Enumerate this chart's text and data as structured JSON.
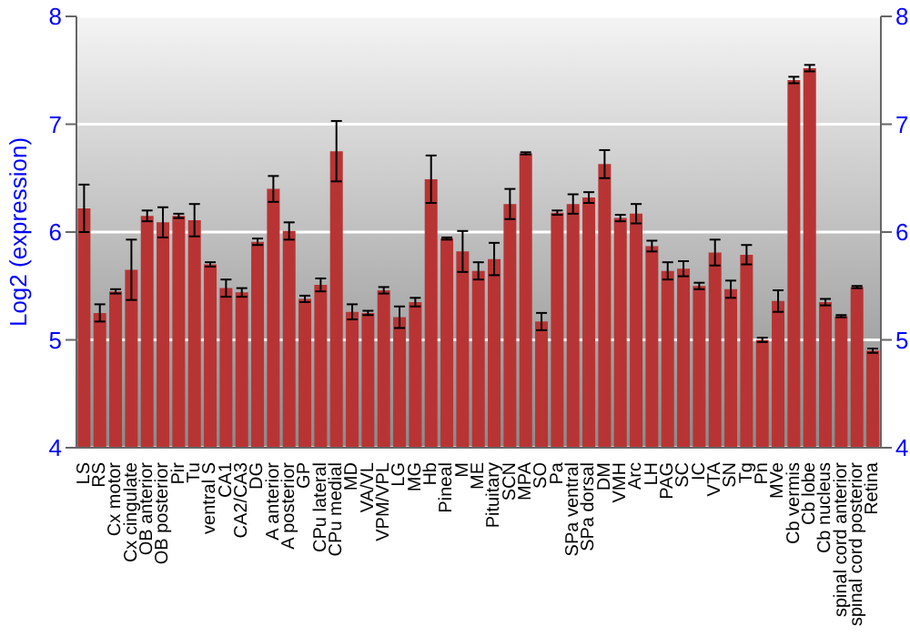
{
  "chart_data": {
    "type": "bar",
    "ylabel": "Log2 (expression)",
    "categories": [
      "LS",
      "RS",
      "Cx motor",
      "Cx cingulate",
      "OB anterior",
      "OB posterior",
      "Pir",
      "Tu",
      "ventral S",
      "CA1",
      "CA2/CA3",
      "DG",
      "A anterior",
      "A posterior",
      "GP",
      "CPu lateral",
      "CPu medial",
      "MD",
      "VA/VL",
      "VPM/VPL",
      "LG",
      "MG",
      "Hb",
      "Pineal",
      "M",
      "ME",
      "Pituitary",
      "SCN",
      "MPA",
      "SO",
      "Pa",
      "SPa ventral",
      "SPa dorsal",
      "DM",
      "VMH",
      "Arc",
      "LH",
      "PAG",
      "SC",
      "IC",
      "VTA",
      "SN",
      "Tg",
      "Pn",
      "MVe",
      "Cb vermis",
      "Cb lobe",
      "Cb nucleus",
      "spinal cord anterior",
      "spinal cord posterior",
      "Retina"
    ],
    "values": [
      6.22,
      5.25,
      5.45,
      5.65,
      6.15,
      6.09,
      6.15,
      6.11,
      5.7,
      5.48,
      5.44,
      5.91,
      6.4,
      6.01,
      5.38,
      5.51,
      6.75,
      5.26,
      5.25,
      5.46,
      5.21,
      5.35,
      6.49,
      5.94,
      5.82,
      5.64,
      5.75,
      6.26,
      6.73,
      5.17,
      6.18,
      6.26,
      6.32,
      6.63,
      6.13,
      6.17,
      5.87,
      5.64,
      5.66,
      5.5,
      5.81,
      5.47,
      5.79,
      5.0,
      5.36,
      7.41,
      7.52,
      5.35,
      5.22,
      5.49,
      4.9
    ],
    "errors": [
      0.22,
      0.08,
      0.02,
      0.28,
      0.05,
      0.14,
      0.02,
      0.15,
      0.02,
      0.08,
      0.04,
      0.03,
      0.12,
      0.08,
      0.03,
      0.06,
      0.28,
      0.07,
      0.02,
      0.03,
      0.1,
      0.04,
      0.22,
      0.01,
      0.19,
      0.08,
      0.15,
      0.14,
      0.01,
      0.08,
      0.02,
      0.09,
      0.05,
      0.13,
      0.03,
      0.09,
      0.05,
      0.08,
      0.07,
      0.03,
      0.12,
      0.08,
      0.09,
      0.02,
      0.1,
      0.03,
      0.03,
      0.03,
      0.01,
      0.01,
      0.02
    ],
    "color": "#b83434",
    "ylim": [
      4,
      8
    ],
    "yticks": [
      4,
      5,
      6,
      7,
      8
    ],
    "y2lim": [
      4,
      8
    ],
    "y2ticks": [
      4,
      5,
      6,
      7,
      8
    ],
    "grid": "y"
  }
}
